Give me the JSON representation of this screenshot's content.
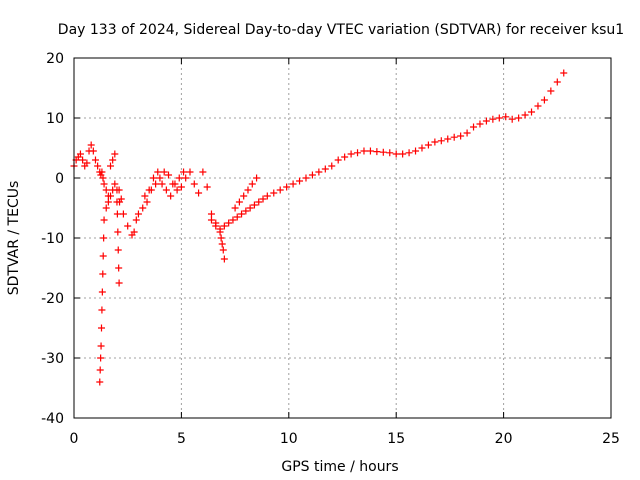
{
  "chart_data": {
    "type": "scatter",
    "title": "Day 133 of 2024, Sidereal Day-to-day VTEC variation (SDTVAR) for receiver ksu1",
    "xlabel": "GPS time / hours",
    "ylabel": "SDTVAR / TECUs",
    "xlim": [
      0,
      25
    ],
    "ylim": [
      -40,
      20
    ],
    "xticks": [
      0,
      5,
      10,
      15,
      20,
      25
    ],
    "yticks": [
      -40,
      -30,
      -20,
      -10,
      0,
      10,
      20
    ],
    "xtick_labels": [
      "0",
      "5",
      "10",
      "15",
      "20",
      "25"
    ],
    "ytick_labels": [
      "-40",
      "-30",
      "-20",
      "-10",
      "0",
      "10",
      "20"
    ],
    "grid": true,
    "marker": "+",
    "color": "#ff0000",
    "series": [
      {
        "name": "SDTVAR",
        "x": [
          0.0,
          0.1,
          0.2,
          0.3,
          0.4,
          0.5,
          0.6,
          0.7,
          0.8,
          0.9,
          1.0,
          1.1,
          1.2,
          1.25,
          1.3,
          1.35,
          1.4,
          1.5,
          1.6,
          1.7,
          1.8,
          1.9,
          2.0,
          2.1,
          2.2,
          2.3,
          2.5,
          2.7,
          2.8,
          2.9,
          3.0,
          3.2,
          3.4,
          3.6,
          3.8,
          4.0,
          4.2,
          4.4,
          4.6,
          4.8,
          5.0,
          5.2,
          5.4,
          5.6,
          5.8,
          6.0,
          6.2,
          6.4,
          6.6,
          6.8,
          7.0,
          7.2,
          7.4,
          7.6,
          7.8,
          8.0,
          8.2,
          8.4,
          8.6,
          8.8,
          9.0,
          9.3,
          9.6,
          9.9,
          10.2,
          10.5,
          10.8,
          11.1,
          11.4,
          11.7,
          12.0,
          12.3,
          12.6,
          12.9,
          13.2,
          13.5,
          13.8,
          14.1,
          14.4,
          14.7,
          15.0,
          15.3,
          15.6,
          15.9,
          16.2,
          16.5,
          16.8,
          17.1,
          17.4,
          17.7,
          18.0,
          18.3,
          18.6,
          18.9,
          19.2,
          19.5,
          19.8,
          20.1,
          20.4,
          20.7,
          21.0,
          21.3,
          21.6,
          21.9,
          22.2,
          22.5,
          22.8,
          1.2,
          1.22,
          1.24,
          1.26,
          1.28,
          1.3,
          1.32,
          1.34,
          1.36,
          1.38,
          1.4,
          1.5,
          1.6,
          1.7,
          1.8,
          1.9,
          2.0,
          2.02,
          2.04,
          2.06,
          2.08,
          2.1,
          2.12,
          3.3,
          3.5,
          3.7,
          3.9,
          4.1,
          4.3,
          4.5,
          4.7,
          4.9,
          5.1,
          6.4,
          6.6,
          6.8,
          6.85,
          6.9,
          6.95,
          7.0,
          7.5,
          7.7,
          7.9,
          8.1,
          8.3,
          8.5
        ],
        "y": [
          2.0,
          3.0,
          3.5,
          4.0,
          3.0,
          2.0,
          2.5,
          4.5,
          5.5,
          4.5,
          3.0,
          2.0,
          1.0,
          0.5,
          1.0,
          0.0,
          -1.0,
          -2.0,
          -3.0,
          2.0,
          3.0,
          4.0,
          -4.0,
          -2.0,
          -3.5,
          -6.0,
          -8.0,
          -9.5,
          -9.0,
          -7.0,
          -6.0,
          -5.0,
          -4.0,
          -2.0,
          -1.0,
          0.0,
          1.0,
          0.5,
          -1.0,
          -2.0,
          -1.5,
          0.0,
          1.0,
          -1.0,
          -2.5,
          1.0,
          -1.5,
          -6.0,
          -7.5,
          -8.5,
          -8.0,
          -7.5,
          -7.0,
          -6.5,
          -6.0,
          -5.5,
          -5.0,
          -4.5,
          -4.0,
          -3.5,
          -3.0,
          -2.5,
          -2.0,
          -1.5,
          -1.0,
          -0.5,
          0.0,
          0.5,
          1.0,
          1.5,
          2.0,
          3.0,
          3.5,
          4.0,
          4.2,
          4.5,
          4.5,
          4.4,
          4.3,
          4.2,
          4.0,
          4.0,
          4.2,
          4.5,
          5.0,
          5.5,
          6.0,
          6.2,
          6.5,
          6.8,
          7.0,
          7.5,
          8.5,
          9.0,
          9.5,
          9.8,
          10.0,
          10.2,
          9.8,
          10.0,
          10.5,
          11.0,
          12.0,
          13.0,
          14.5,
          16.0,
          17.5,
          -34.0,
          -32.0,
          -30.0,
          -28.0,
          -25.0,
          -22.0,
          -19.0,
          -16.0,
          -13.0,
          -10.0,
          -7.0,
          -5.0,
          -4.0,
          -3.0,
          -2.0,
          -1.0,
          -2.0,
          -6.0,
          -9.0,
          -12.0,
          -15.0,
          -17.5,
          -4.0,
          -3.0,
          -2.0,
          0.0,
          1.0,
          -1.0,
          -2.0,
          -3.0,
          -1.0,
          0.0,
          1.0,
          -7.0,
          -8.0,
          -9.0,
          -10.0,
          -11.0,
          -12.0,
          -13.5,
          -5.0,
          -4.0,
          -3.0,
          -2.0,
          -1.0,
          0.0
        ]
      }
    ]
  }
}
